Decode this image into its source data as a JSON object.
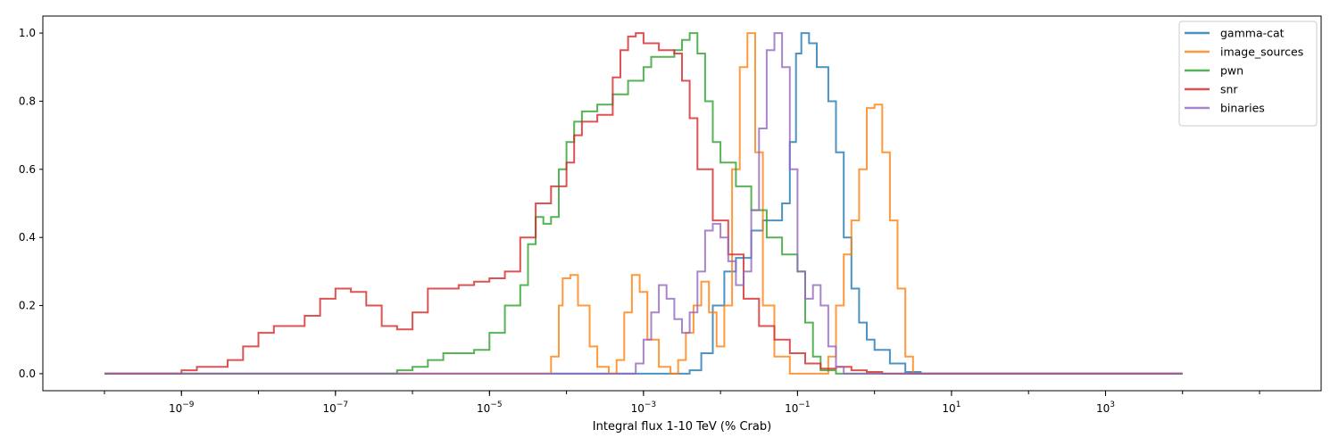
{
  "chart_data": {
    "type": "line",
    "style": "step histogram",
    "title": "",
    "xlabel": "Integral flux 1-10 TeV (% Crab)",
    "ylabel": "",
    "xscale": "log",
    "xlim_log10": [
      -10.8,
      5.8
    ],
    "ylim": [
      -0.05,
      1.05
    ],
    "x_ticks_exponents": [
      -9,
      -7,
      -5,
      -3,
      -1,
      1,
      3
    ],
    "y_ticks": [
      "0.0",
      "0.2",
      "0.4",
      "0.6",
      "0.8",
      "1.0"
    ],
    "grid": false,
    "legend_position": "top-right",
    "series": [
      {
        "name": "gamma-cat",
        "color": "#1f77b4",
        "points": [
          [
            -10,
            0
          ],
          [
            -2.6,
            0
          ],
          [
            -2.4,
            0.01
          ],
          [
            -2.25,
            0.06
          ],
          [
            -2.1,
            0.2
          ],
          [
            -1.95,
            0.3
          ],
          [
            -1.8,
            0.34
          ],
          [
            -1.6,
            0.42
          ],
          [
            -1.45,
            0.45
          ],
          [
            -1.3,
            0.45
          ],
          [
            -1.2,
            0.5
          ],
          [
            -1.1,
            0.68
          ],
          [
            -1.02,
            0.94
          ],
          [
            -0.95,
            1.0
          ],
          [
            -0.85,
            0.97
          ],
          [
            -0.75,
            0.9
          ],
          [
            -0.6,
            0.8
          ],
          [
            -0.5,
            0.65
          ],
          [
            -0.4,
            0.4
          ],
          [
            -0.3,
            0.25
          ],
          [
            -0.2,
            0.15
          ],
          [
            -0.1,
            0.1
          ],
          [
            0.0,
            0.07
          ],
          [
            0.2,
            0.03
          ],
          [
            0.4,
            0.005
          ],
          [
            0.6,
            0
          ],
          [
            4,
            0
          ]
        ]
      },
      {
        "name": "image_sources",
        "color": "#ff7f0e",
        "points": [
          [
            -10,
            0
          ],
          [
            -4.3,
            0
          ],
          [
            -4.2,
            0.05
          ],
          [
            -4.1,
            0.2
          ],
          [
            -4.05,
            0.28
          ],
          [
            -3.95,
            0.29
          ],
          [
            -3.85,
            0.2
          ],
          [
            -3.7,
            0.08
          ],
          [
            -3.6,
            0.02
          ],
          [
            -3.45,
            0
          ],
          [
            -3.35,
            0.04
          ],
          [
            -3.25,
            0.18
          ],
          [
            -3.15,
            0.29
          ],
          [
            -3.05,
            0.24
          ],
          [
            -2.95,
            0.1
          ],
          [
            -2.8,
            0.02
          ],
          [
            -2.65,
            0
          ],
          [
            -2.55,
            0.04
          ],
          [
            -2.45,
            0.12
          ],
          [
            -2.35,
            0.2
          ],
          [
            -2.25,
            0.27
          ],
          [
            -2.15,
            0.18
          ],
          [
            -2.05,
            0.08
          ],
          [
            -1.95,
            0.2
          ],
          [
            -1.85,
            0.6
          ],
          [
            -1.75,
            0.9
          ],
          [
            -1.65,
            1.0
          ],
          [
            -1.55,
            0.65
          ],
          [
            -1.45,
            0.2
          ],
          [
            -1.3,
            0.05
          ],
          [
            -1.1,
            0
          ],
          [
            -0.7,
            0
          ],
          [
            -0.6,
            0.05
          ],
          [
            -0.5,
            0.2
          ],
          [
            -0.4,
            0.35
          ],
          [
            -0.3,
            0.45
          ],
          [
            -0.2,
            0.6
          ],
          [
            -0.1,
            0.78
          ],
          [
            0.0,
            0.79
          ],
          [
            0.1,
            0.65
          ],
          [
            0.2,
            0.45
          ],
          [
            0.3,
            0.25
          ],
          [
            0.4,
            0.05
          ],
          [
            0.5,
            0
          ],
          [
            4,
            0
          ]
        ]
      },
      {
        "name": "pwn",
        "color": "#2ca02c",
        "points": [
          [
            -10,
            0
          ],
          [
            -6.4,
            0
          ],
          [
            -6.2,
            0.01
          ],
          [
            -6.0,
            0.02
          ],
          [
            -5.8,
            0.04
          ],
          [
            -5.6,
            0.06
          ],
          [
            -5.4,
            0.06
          ],
          [
            -5.2,
            0.07
          ],
          [
            -5.0,
            0.12
          ],
          [
            -4.8,
            0.2
          ],
          [
            -4.6,
            0.26
          ],
          [
            -4.5,
            0.38
          ],
          [
            -4.4,
            0.46
          ],
          [
            -4.3,
            0.44
          ],
          [
            -4.2,
            0.46
          ],
          [
            -4.1,
            0.6
          ],
          [
            -4.0,
            0.68
          ],
          [
            -3.9,
            0.74
          ],
          [
            -3.8,
            0.77
          ],
          [
            -3.6,
            0.79
          ],
          [
            -3.4,
            0.82
          ],
          [
            -3.2,
            0.86
          ],
          [
            -3.0,
            0.9
          ],
          [
            -2.9,
            0.93
          ],
          [
            -2.7,
            0.93
          ],
          [
            -2.6,
            0.95
          ],
          [
            -2.5,
            0.98
          ],
          [
            -2.4,
            1.0
          ],
          [
            -2.3,
            0.94
          ],
          [
            -2.2,
            0.8
          ],
          [
            -2.1,
            0.68
          ],
          [
            -2.0,
            0.62
          ],
          [
            -1.8,
            0.55
          ],
          [
            -1.6,
            0.48
          ],
          [
            -1.4,
            0.4
          ],
          [
            -1.2,
            0.35
          ],
          [
            -1.0,
            0.3
          ],
          [
            -0.9,
            0.15
          ],
          [
            -0.8,
            0.05
          ],
          [
            -0.7,
            0.01
          ],
          [
            -0.5,
            0
          ],
          [
            4,
            0
          ]
        ]
      },
      {
        "name": "snr",
        "color": "#d62728",
        "points": [
          [
            -10,
            0
          ],
          [
            -9.2,
            0
          ],
          [
            -9.0,
            0.01
          ],
          [
            -8.8,
            0.02
          ],
          [
            -8.6,
            0.02
          ],
          [
            -8.4,
            0.04
          ],
          [
            -8.2,
            0.08
          ],
          [
            -8.0,
            0.12
          ],
          [
            -7.8,
            0.14
          ],
          [
            -7.6,
            0.14
          ],
          [
            -7.4,
            0.17
          ],
          [
            -7.2,
            0.22
          ],
          [
            -7.0,
            0.25
          ],
          [
            -6.8,
            0.24
          ],
          [
            -6.6,
            0.2
          ],
          [
            -6.4,
            0.14
          ],
          [
            -6.2,
            0.13
          ],
          [
            -6.0,
            0.18
          ],
          [
            -5.8,
            0.25
          ],
          [
            -5.6,
            0.25
          ],
          [
            -5.4,
            0.26
          ],
          [
            -5.2,
            0.27
          ],
          [
            -5.0,
            0.28
          ],
          [
            -4.8,
            0.3
          ],
          [
            -4.6,
            0.4
          ],
          [
            -4.4,
            0.5
          ],
          [
            -4.2,
            0.55
          ],
          [
            -4.0,
            0.62
          ],
          [
            -3.9,
            0.7
          ],
          [
            -3.8,
            0.74
          ],
          [
            -3.6,
            0.76
          ],
          [
            -3.4,
            0.87
          ],
          [
            -3.3,
            0.95
          ],
          [
            -3.2,
            0.99
          ],
          [
            -3.1,
            1.0
          ],
          [
            -3.0,
            0.97
          ],
          [
            -2.8,
            0.95
          ],
          [
            -2.6,
            0.94
          ],
          [
            -2.5,
            0.86
          ],
          [
            -2.4,
            0.75
          ],
          [
            -2.3,
            0.6
          ],
          [
            -2.1,
            0.45
          ],
          [
            -1.9,
            0.35
          ],
          [
            -1.7,
            0.22
          ],
          [
            -1.5,
            0.14
          ],
          [
            -1.3,
            0.1
          ],
          [
            -1.1,
            0.06
          ],
          [
            -0.9,
            0.03
          ],
          [
            -0.7,
            0.015
          ],
          [
            -0.5,
            0.02
          ],
          [
            -0.3,
            0.01
          ],
          [
            -0.1,
            0.005
          ],
          [
            0.1,
            0
          ],
          [
            4,
            0
          ]
        ]
      },
      {
        "name": "binaries",
        "color": "#9467bd",
        "points": [
          [
            -10,
            0
          ],
          [
            -3.2,
            0
          ],
          [
            -3.1,
            0.03
          ],
          [
            -3.0,
            0.1
          ],
          [
            -2.9,
            0.18
          ],
          [
            -2.8,
            0.26
          ],
          [
            -2.7,
            0.22
          ],
          [
            -2.6,
            0.16
          ],
          [
            -2.5,
            0.12
          ],
          [
            -2.4,
            0.18
          ],
          [
            -2.3,
            0.3
          ],
          [
            -2.2,
            0.42
          ],
          [
            -2.1,
            0.44
          ],
          [
            -2.0,
            0.4
          ],
          [
            -1.9,
            0.33
          ],
          [
            -1.8,
            0.26
          ],
          [
            -1.7,
            0.3
          ],
          [
            -1.6,
            0.48
          ],
          [
            -1.5,
            0.72
          ],
          [
            -1.4,
            0.95
          ],
          [
            -1.3,
            1.0
          ],
          [
            -1.2,
            0.9
          ],
          [
            -1.1,
            0.6
          ],
          [
            -1.0,
            0.3
          ],
          [
            -0.9,
            0.22
          ],
          [
            -0.8,
            0.26
          ],
          [
            -0.7,
            0.2
          ],
          [
            -0.6,
            0.08
          ],
          [
            -0.5,
            0.02
          ],
          [
            -0.4,
            0
          ],
          [
            4,
            0
          ]
        ]
      }
    ]
  }
}
